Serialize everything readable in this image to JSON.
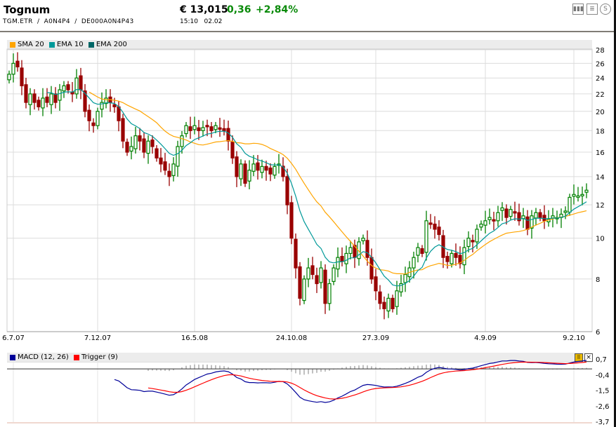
{
  "header": {
    "title": "Tognum",
    "identifiers": "TGM.ETR  /  A0N4P4  /  DE000A0N4P43",
    "price": "€ 13,015",
    "change": "0,36",
    "change_pct": "+2,84%",
    "time": "15:10",
    "date": "02.02"
  },
  "toolbar": {
    "chart_icon": "bar-chart-icon",
    "news_icon": "news-icon",
    "currency_icon": "currency-icon"
  },
  "legend": {
    "sma": "SMA 20",
    "ema10": "EMA 10",
    "ema200": "EMA 200",
    "macd": "MACD (12, 26)",
    "trigger": "Trigger (9)"
  },
  "colors": {
    "up": "#008000",
    "down": "#990000",
    "sma": "#ffa500",
    "ema10": "#009999",
    "ema200": "#006666",
    "macd": "#000099",
    "trigger": "#ff0000",
    "hist": "#aaaaaa"
  },
  "chart_data": {
    "type": "candlestick",
    "title": "Tognum",
    "x_tick_labels": [
      "6.7.07",
      "7.12.07",
      "16.5.08",
      "24.10.08",
      "27.3.09",
      "4.9.09",
      "9.2.10"
    ],
    "x_tick_index": [
      1,
      21,
      44,
      67,
      87,
      113,
      134
    ],
    "y_ticks": [
      6,
      8,
      10,
      12,
      14,
      16,
      18,
      20,
      22,
      24,
      26,
      28
    ],
    "ylim": [
      6,
      28
    ],
    "yscale": "log",
    "close": [
      24.5,
      26,
      25.5,
      23,
      21,
      22,
      21,
      20.5,
      21.5,
      21,
      22,
      21,
      22.5,
      23,
      22.5,
      22,
      24,
      22.5,
      20,
      19,
      18.5,
      20,
      21,
      21.5,
      21,
      20.5,
      19,
      17,
      16,
      16.5,
      17.5,
      17,
      16,
      17,
      16.5,
      15.5,
      15,
      14.5,
      14,
      15,
      16.5,
      17.5,
      18.5,
      18,
      18.5,
      18,
      18.3,
      18.5,
      18,
      18.5,
      18.2,
      18,
      17,
      15.5,
      14,
      15,
      13.5,
      14.5,
      15,
      14.5,
      14.8,
      14.5,
      14.2,
      14.8,
      15,
      14,
      12,
      10,
      8.5,
      7.2,
      8,
      8.5,
      8.2,
      7.8,
      8.5,
      7,
      7.8,
      8.5,
      9,
      8.8,
      9.2,
      9.5,
      9,
      9.8,
      10,
      9,
      8,
      7.5,
      7,
      6.8,
      7.2,
      6.8,
      7.5,
      7.8,
      8.2,
      8.5,
      9,
      9.5,
      9.2,
      11,
      10.8,
      10.5,
      10.2,
      9,
      8.8,
      9.2,
      9,
      8.7,
      9.5,
      10,
      9.8,
      10.5,
      10.8,
      11,
      11.2,
      11,
      11.5,
      11.8,
      11.2,
      11.7,
      11.5,
      11,
      11.3,
      10.5,
      11.3,
      11.5,
      11.2,
      11,
      11.1,
      11.3,
      11.2,
      11.4,
      11.6,
      12.5,
      12.7,
      12.6,
      12.7,
      13
    ],
    "indicators": [
      "SMA 20",
      "EMA 10",
      "EMA 200"
    ],
    "macd": {
      "title": "MACD (12, 26)",
      "trigger": "Trigger (9)",
      "y_ticks": [
        "0,7",
        "-0,4",
        "-1,5",
        "-2,6",
        "-3,7"
      ],
      "ylim": [
        -3.7,
        0.7
      ]
    }
  }
}
